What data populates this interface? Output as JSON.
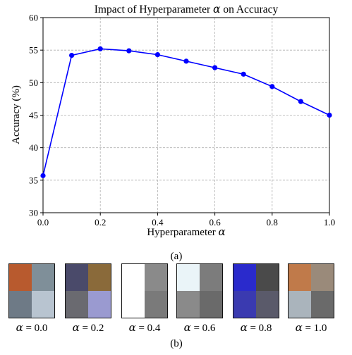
{
  "chart_data": {
    "type": "line",
    "title_prefix": "Impact of Hyperparameter ",
    "title_symbol": "α",
    "title_suffix": " on Accuracy",
    "xlabel_prefix": "Hyperparameter ",
    "xlabel_symbol": "α",
    "ylabel": "Accuracy (%)",
    "x": [
      0.0,
      0.1,
      0.2,
      0.3,
      0.4,
      0.5,
      0.6,
      0.7,
      0.8,
      0.9,
      1.0
    ],
    "series": [
      {
        "values": [
          35.7,
          54.2,
          55.2,
          54.9,
          54.3,
          53.3,
          52.3,
          51.3,
          49.4,
          47.1,
          45.0
        ]
      }
    ],
    "xlim": [
      0.0,
      1.0
    ],
    "ylim": [
      30,
      60
    ],
    "xticks": [
      "0.0",
      "0.2",
      "0.4",
      "0.6",
      "0.8",
      "1.0"
    ],
    "xtick_values": [
      0.0,
      0.2,
      0.4,
      0.6,
      0.8,
      1.0
    ],
    "yticks": [
      "30",
      "35",
      "40",
      "45",
      "50",
      "55",
      "60"
    ],
    "ytick_values": [
      30,
      35,
      40,
      45,
      50,
      55,
      60
    ],
    "grid": true,
    "line_color": "#0000ff",
    "grid_color": "#b0b0b0"
  },
  "caption_a": "(a)",
  "caption_b": "(b)",
  "samples": [
    {
      "alpha_symbol": "α",
      "alpha_text": " = 0.0",
      "colors": [
        "#b85a2e",
        "#7f8f99",
        "#6e7a86",
        "#b8c4d0"
      ]
    },
    {
      "alpha_symbol": "α",
      "alpha_text": " = 0.2",
      "colors": [
        "#4a4a6a",
        "#8a6a3a",
        "#6a6a70",
        "#9a9ad0"
      ]
    },
    {
      "alpha_symbol": "α",
      "alpha_text": " = 0.4",
      "colors": [
        "#ffffff",
        "#8a8a8a",
        "#ffffff",
        "#7a7a7a"
      ]
    },
    {
      "alpha_symbol": "α",
      "alpha_text": " = 0.6",
      "colors": [
        "#eaf4f8",
        "#7c7c7c",
        "#8a8a8a",
        "#6a6a6a"
      ]
    },
    {
      "alpha_symbol": "α",
      "alpha_text": " = 0.8",
      "colors": [
        "#2a2acc",
        "#4a4a4a",
        "#3a3ab0",
        "#5a5a6a"
      ]
    },
    {
      "alpha_symbol": "α",
      "alpha_text": " = 1.0",
      "colors": [
        "#c07a4a",
        "#9a8a7a",
        "#aab4bc",
        "#6a6a6a"
      ]
    }
  ]
}
